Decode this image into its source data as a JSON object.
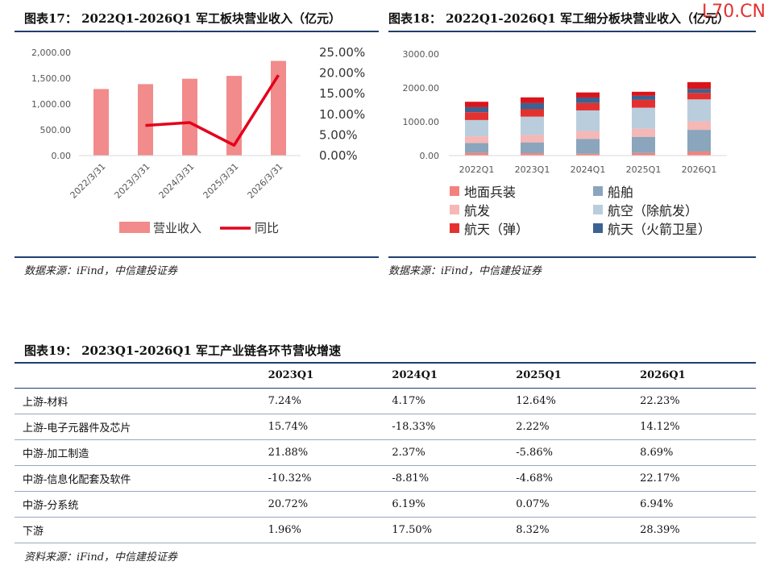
{
  "watermark": "L70.CN",
  "fig17": {
    "title": "图表17：  2022Q1-2026Q1 军工板块营业收入（亿元）",
    "source": "数据来源：iFind，中信建投证券"
  },
  "fig18": {
    "title": "图表18：  2022Q1-2026Q1 军工细分板块营业收入（亿元）",
    "source": "数据来源：iFind，中信建投证券"
  },
  "fig19": {
    "title": "图表19：  2023Q1-2026Q1 军工产业链各环节营收增速",
    "source": "资料来源：iFind，中信建投证券",
    "columns": [
      "",
      "2023Q1",
      "2024Q1",
      "2025Q1",
      "2026Q1"
    ],
    "rows": [
      {
        "label": "上游-材料",
        "values": [
          "7.24%",
          "4.17%",
          "12.64%",
          "22.23%"
        ]
      },
      {
        "label": "上游-电子元器件及芯片",
        "values": [
          "15.74%",
          "-18.33%",
          "2.22%",
          "14.12%"
        ]
      },
      {
        "label": "中游-加工制造",
        "values": [
          "21.88%",
          "2.37%",
          "-5.86%",
          "8.69%"
        ]
      },
      {
        "label": "中游-信息化配套及软件",
        "values": [
          "-10.32%",
          "-8.81%",
          "-4.68%",
          "22.17%"
        ]
      },
      {
        "label": "中游-分系统",
        "values": [
          "20.72%",
          "6.19%",
          "0.07%",
          "6.94%"
        ]
      },
      {
        "label": "下游",
        "values": [
          "1.96%",
          "17.50%",
          "8.32%",
          "28.39%"
        ]
      }
    ]
  },
  "chart_data": [
    {
      "type": "bar",
      "categories": [
        "2022/3/31",
        "2023/3/31",
        "2024/3/31",
        "2025/3/31",
        "2026/3/31"
      ],
      "series": [
        {
          "name": "营业收入",
          "type": "bar",
          "axis": "left",
          "color": "#f28b8b",
          "values": [
            1290,
            1385,
            1490,
            1545,
            1835
          ]
        },
        {
          "name": "同比",
          "type": "line",
          "axis": "right",
          "color": "#e3001b",
          "values": [
            null,
            0.073,
            0.08,
            0.025,
            0.195
          ]
        }
      ],
      "ylim_left": [
        0,
        2000
      ],
      "yticks_left": [
        "0.00",
        "500.00",
        "1,000.00",
        "1,500.00",
        "2,000.00"
      ],
      "ylim_right": [
        0,
        0.25
      ],
      "yticks_right": [
        "0.00%",
        "5.00%",
        "10.00%",
        "15.00%",
        "20.00%",
        "25.00%"
      ],
      "legend_position": "bottom"
    },
    {
      "type": "bar",
      "stacked": true,
      "categories": [
        "2022Q1",
        "2023Q1",
        "2024Q1",
        "2025Q1",
        "2026Q1"
      ],
      "series": [
        {
          "name": "地面兵装",
          "color": "#f4827c",
          "values": [
            80,
            70,
            55,
            75,
            120
          ]
        },
        {
          "name": "船舶",
          "color": "#8aa5bc",
          "values": [
            290,
            320,
            440,
            480,
            640
          ]
        },
        {
          "name": "航发",
          "color": "#f6b7b7",
          "values": [
            200,
            220,
            230,
            240,
            250
          ]
        },
        {
          "name": "航空（除航发）",
          "color": "#b9cddd",
          "values": [
            480,
            540,
            610,
            620,
            650
          ]
        },
        {
          "name": "航天（弹）",
          "color": "#e4312f",
          "values": [
            230,
            220,
            220,
            230,
            190
          ]
        },
        {
          "name": "航天（火箭卫星）",
          "color": "#3c6291",
          "values": [
            150,
            180,
            160,
            120,
            120
          ]
        },
        {
          "name": "",
          "color": "#d9151b",
          "values": [
            160,
            170,
            150,
            120,
            200
          ]
        }
      ],
      "ylim": [
        0,
        3000
      ],
      "yticks": [
        "0.00",
        "1000.00",
        "2000.00",
        "3000.00"
      ],
      "legend": [
        {
          "label": "地面兵装",
          "color": "#f4827c"
        },
        {
          "label": "船舶",
          "color": "#8aa5bc"
        },
        {
          "label": "航发",
          "color": "#f6b7b7"
        },
        {
          "label": "航空（除航发）",
          "color": "#b9cddd"
        },
        {
          "label": "航天（弹）",
          "color": "#e4312f"
        },
        {
          "label": "航天（火箭卫星）",
          "color": "#3c6291"
        }
      ],
      "legend_position": "bottom"
    }
  ]
}
